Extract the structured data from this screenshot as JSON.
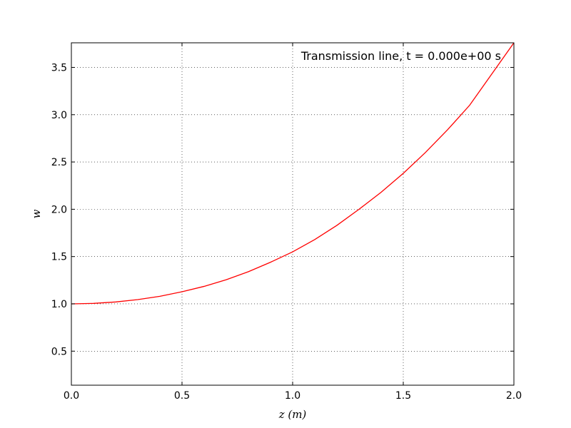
{
  "chart_data": {
    "type": "line",
    "title": "",
    "annotation": "Transmission line, t = 0.000e+00 s",
    "xlabel": "z (m)",
    "ylabel": "w",
    "xlim": [
      0.0,
      2.0
    ],
    "ylim": [
      0.14,
      3.76
    ],
    "xticks": [
      0.0,
      0.5,
      1.0,
      1.5,
      2.0
    ],
    "xtick_labels": [
      "0.0",
      "0.5",
      "1.0",
      "1.5",
      "2.0"
    ],
    "yticks": [
      0.5,
      1.0,
      1.5,
      2.0,
      2.5,
      3.0,
      3.5
    ],
    "ytick_labels": [
      "0.5",
      "1.0",
      "1.5",
      "2.0",
      "2.5",
      "3.0",
      "3.5"
    ],
    "grid": true,
    "legend": "none",
    "series": [
      {
        "color": "#ff0000",
        "x": [
          0.0,
          0.1,
          0.2,
          0.3,
          0.4,
          0.5,
          0.6,
          0.7,
          0.8,
          0.9,
          1.0,
          1.1,
          1.2,
          1.3,
          1.4,
          1.5,
          1.6,
          1.7,
          1.8,
          1.9,
          2.0
        ],
        "y": [
          1.0,
          1.005,
          1.02,
          1.045,
          1.08,
          1.128,
          1.185,
          1.255,
          1.34,
          1.44,
          1.55,
          1.68,
          1.83,
          2.0,
          2.18,
          2.38,
          2.6,
          2.84,
          3.1,
          3.43,
          3.76
        ]
      }
    ]
  }
}
